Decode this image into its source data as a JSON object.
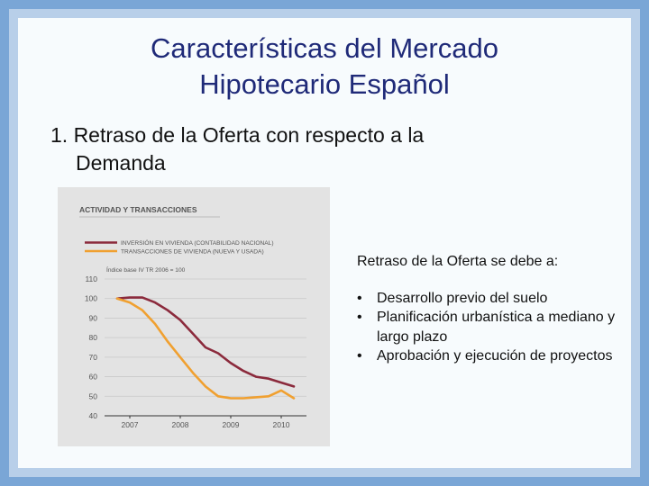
{
  "slide": {
    "title_line1": "Características del Mercado",
    "title_line2": "Hipotecario Español",
    "subtitle_line1": "1. Retraso de la Oferta con respecto a la",
    "subtitle_line2": "Demanda",
    "colors": {
      "title": "#1f2a78",
      "background": "#7aa6d6",
      "panel": "#f7fbfd"
    }
  },
  "panel": {
    "lead": "Retraso de la Oferta se debe a:",
    "bullets": [
      "Desarrollo previo del suelo",
      "Planificación urbanística a mediano y largo plazo",
      "Aprobación y ejecución de proyectos"
    ]
  },
  "chart_data": {
    "type": "line",
    "title": "ACTIVIDAD Y TRANSACCIONES",
    "note": "Índice base IV TR 2006 = 100",
    "x_ticks": [
      "2007",
      "2008",
      "2009",
      "2010"
    ],
    "y_ticks": [
      40,
      50,
      60,
      70,
      80,
      90,
      100,
      110
    ],
    "ylim": [
      40,
      110
    ],
    "grid": true,
    "legend_position": "top-left",
    "series": [
      {
        "name": "INVERSIÓN EN VIVIENDA (CONTABILIDAD NACIONAL)",
        "color": "#8b2a3c",
        "x": [
          2006.75,
          2007,
          2007.25,
          2007.5,
          2007.75,
          2008,
          2008.25,
          2008.5,
          2008.75,
          2009,
          2009.25,
          2009.5,
          2009.75,
          2010,
          2010.25
        ],
        "values": [
          100,
          100.5,
          100.5,
          98,
          94,
          89,
          82,
          75,
          72,
          67,
          63,
          60,
          59,
          57,
          55
        ]
      },
      {
        "name": "TRANSACCIONES DE VIVIENDA (NUEVA Y USADA)",
        "color": "#f0a030",
        "x": [
          2006.75,
          2007,
          2007.25,
          2007.5,
          2007.75,
          2008,
          2008.25,
          2008.5,
          2008.75,
          2009,
          2009.25,
          2009.5,
          2009.75,
          2010,
          2010.25
        ],
        "values": [
          100,
          98,
          94,
          87,
          78,
          70,
          62,
          55,
          50,
          49,
          49,
          49.5,
          50,
          53,
          49
        ]
      }
    ]
  }
}
